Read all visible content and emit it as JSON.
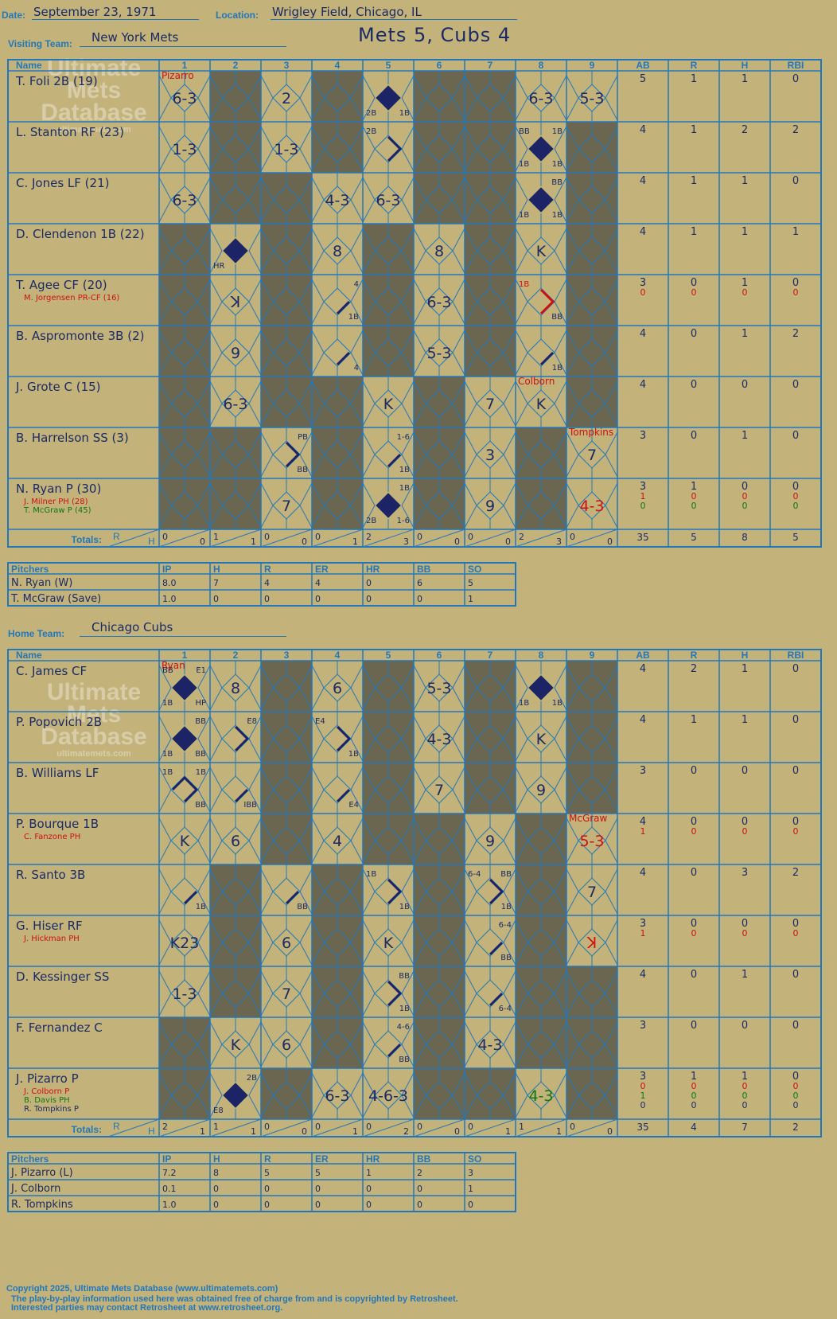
{
  "header": {
    "date_label": "Date:",
    "date": "September 23, 1971",
    "location_label": "Location:",
    "location": "Wrigley Field, Chicago, IL",
    "visiting_label": "Visiting Team:",
    "visiting_team": "New York Mets",
    "home_label": "Home Team:",
    "home_team": "Chicago Cubs",
    "score_title": "Mets 5, Cubs 4"
  },
  "grid_headers": {
    "name": "Name",
    "innings": [
      "1",
      "2",
      "3",
      "4",
      "5",
      "6",
      "7",
      "8",
      "9"
    ],
    "stats": [
      "AB",
      "R",
      "H",
      "RBI"
    ],
    "totals": "Totals:",
    "r": "R",
    "h": "H"
  },
  "pitch_headers": [
    "Pitchers",
    "IP",
    "H",
    "R",
    "ER",
    "HR",
    "BB",
    "SO"
  ],
  "watermark": {
    "line1": "Ultimate",
    "line2": "Mets",
    "line3": "Database",
    "url": "ultimatemets.com"
  },
  "visitors": {
    "batters": [
      {
        "name": "T. Foli 2B (19)",
        "subs": [],
        "stats": [
          [
            "5",
            "1",
            "1",
            "0"
          ]
        ],
        "cells": [
          {
            "text": "6-3",
            "note": "Pizarro",
            "note_color": "red"
          },
          {
            "shade": true
          },
          {
            "text": "2"
          },
          {
            "shade": true
          },
          {
            "run": true,
            "bl": "2B",
            "br": "1B"
          },
          {
            "shade": true
          },
          {
            "shade": true
          },
          {
            "text": "6-3"
          },
          {
            "text": "5-3"
          }
        ]
      },
      {
        "name": "L. Stanton RF (23)",
        "subs": [],
        "stats": [
          [
            "4",
            "1",
            "2",
            "2"
          ]
        ],
        "cells": [
          {
            "text": "1-3"
          },
          {
            "shade": true
          },
          {
            "text": "1-3"
          },
          {
            "shade": true
          },
          {
            "tl": "2B",
            "path": "hit2"
          },
          {
            "shade": true
          },
          {
            "shade": true
          },
          {
            "run": true,
            "tl": "BB",
            "tr": "1B",
            "bl": "1B",
            "br": "1B"
          },
          {
            "shade": true
          }
        ]
      },
      {
        "name": "C. Jones LF (21)",
        "subs": [],
        "stats": [
          [
            "4",
            "1",
            "1",
            "0"
          ]
        ],
        "cells": [
          {
            "text": "6-3"
          },
          {
            "shade": true
          },
          {
            "shade": true
          },
          {
            "text": "4-3"
          },
          {
            "text": "6-3"
          },
          {
            "shade": true
          },
          {
            "shade": true
          },
          {
            "run": true,
            "tr": "BB",
            "bl": "1B",
            "br": "1B"
          },
          {
            "shade": true
          }
        ]
      },
      {
        "name": "D. Clendenon 1B (22)",
        "subs": [],
        "stats": [
          [
            "4",
            "1",
            "1",
            "1"
          ]
        ],
        "cells": [
          {
            "shade": true
          },
          {
            "run": true,
            "bl": "HR"
          },
          {
            "shade": true
          },
          {
            "text": "8"
          },
          {
            "shade": true
          },
          {
            "text": "8"
          },
          {
            "shade": true
          },
          {
            "text": "K"
          },
          {
            "shade": true
          }
        ]
      },
      {
        "name": "T. Agee CF (20)",
        "subs": [
          {
            "name": "M. Jorgensen PR-CF (16)",
            "color": "red"
          }
        ],
        "stats": [
          [
            "3",
            "0",
            "1",
            "0"
          ],
          [
            "0",
            "0",
            "0",
            "0"
          ]
        ],
        "cells": [
          {
            "shade": true
          },
          {
            "text": "ꓘ"
          },
          {
            "shade": true
          },
          {
            "tr": "4",
            "br": "1B",
            "path": "hit1"
          },
          {
            "shade": true
          },
          {
            "text": "6-3"
          },
          {
            "shade": true
          },
          {
            "tl": "1B",
            "br": "BB",
            "path": "hit2",
            "pcolor": "red",
            "tlred": true
          },
          {
            "shade": true
          }
        ]
      },
      {
        "name": "B. Aspromonte 3B (2)",
        "subs": [],
        "stats": [
          [
            "4",
            "0",
            "1",
            "2"
          ]
        ],
        "cells": [
          {
            "shade": true
          },
          {
            "text": "9"
          },
          {
            "shade": true
          },
          {
            "br": "4",
            "path": "hit1"
          },
          {
            "shade": true
          },
          {
            "text": "5-3"
          },
          {
            "shade": true
          },
          {
            "br": "1B",
            "path": "hit1"
          },
          {
            "shade": true
          }
        ]
      },
      {
        "name": "J. Grote C (15)",
        "subs": [],
        "stats": [
          [
            "4",
            "0",
            "0",
            "0"
          ]
        ],
        "cells": [
          {
            "shade": true
          },
          {
            "text": "6-3"
          },
          {
            "shade": true
          },
          {
            "shade": true
          },
          {
            "text": "K"
          },
          {
            "shade": true
          },
          {
            "text": "7"
          },
          {
            "text": "K",
            "note": "Colborn",
            "note_color": "red"
          },
          {
            "shade": true
          }
        ]
      },
      {
        "name": "B. Harrelson SS (3)",
        "subs": [],
        "stats": [
          [
            "3",
            "0",
            "1",
            "0"
          ]
        ],
        "cells": [
          {
            "shade": true
          },
          {
            "shade": true
          },
          {
            "tr": "PB",
            "br": "BB",
            "path": "hit2"
          },
          {
            "shade": true
          },
          {
            "tr": "1-6",
            "br": "1B",
            "path": "hit1"
          },
          {
            "shade": true
          },
          {
            "text": "3"
          },
          {
            "shade": true
          },
          {
            "text": "7",
            "note": "Tompkins",
            "note_color": "red"
          }
        ]
      },
      {
        "name": "N. Ryan P (30)",
        "subs": [
          {
            "name": "J. Milner PH (28)",
            "color": "red"
          },
          {
            "name": "T. McGraw P (45)",
            "color": "grn"
          }
        ],
        "stats": [
          [
            "3",
            "1",
            "0",
            "0"
          ],
          [
            "1",
            "0",
            "0",
            "0"
          ],
          [
            "0",
            "0",
            "0",
            "0"
          ]
        ],
        "cells": [
          {
            "shade": true
          },
          {
            "shade": true
          },
          {
            "text": "7"
          },
          {
            "shade": true
          },
          {
            "run": true,
            "tr": "1B",
            "bl": "2B",
            "br": "1-6"
          },
          {
            "shade": true
          },
          {
            "text": "9"
          },
          {
            "shade": true
          },
          {
            "text": "4-3",
            "color": "red"
          }
        ]
      }
    ],
    "totals": [
      [
        "0",
        "0"
      ],
      [
        "1",
        "1"
      ],
      [
        "0",
        "0"
      ],
      [
        "0",
        "1"
      ],
      [
        "2",
        "3"
      ],
      [
        "0",
        "0"
      ],
      [
        "0",
        "0"
      ],
      [
        "2",
        "3"
      ],
      [
        "0",
        "0"
      ]
    ],
    "totals_stats": [
      "35",
      "5",
      "8",
      "5"
    ],
    "pitchers": [
      [
        "N. Ryan (W)",
        "8.0",
        "7",
        "4",
        "4",
        "0",
        "6",
        "5"
      ],
      [
        "T. McGraw (Save)",
        "1.0",
        "0",
        "0",
        "0",
        "0",
        "0",
        "1"
      ]
    ]
  },
  "home": {
    "batters": [
      {
        "name": "C. James CF",
        "subs": [],
        "stats": [
          [
            "4",
            "2",
            "1",
            "0"
          ]
        ],
        "cells": [
          {
            "run": true,
            "tl": "BB",
            "tr": "E1",
            "bl": "1B",
            "br": "HP",
            "note": "Ryan",
            "note_color": "red"
          },
          {
            "text": "8"
          },
          {
            "shade": true
          },
          {
            "text": "6"
          },
          {
            "shade": true
          },
          {
            "text": "5-3"
          },
          {
            "shade": true
          },
          {
            "run": true,
            "bl": "1B",
            "br": "1B"
          },
          {
            "shade": true
          }
        ]
      },
      {
        "name": "P. Popovich 2B",
        "subs": [],
        "stats": [
          [
            "4",
            "1",
            "1",
            "0"
          ]
        ],
        "cells": [
          {
            "run": true,
            "tr": "BB",
            "bl": "1B",
            "br": "BB"
          },
          {
            "tr": "E8",
            "path": "hit2"
          },
          {
            "shade": true
          },
          {
            "tl": "E4",
            "br": "1B",
            "path": "hit2"
          },
          {
            "shade": true
          },
          {
            "text": "4-3"
          },
          {
            "shade": true
          },
          {
            "text": "K"
          },
          {
            "shade": true
          }
        ]
      },
      {
        "name": "B. Williams LF",
        "subs": [],
        "stats": [
          [
            "3",
            "0",
            "0",
            "0"
          ]
        ],
        "cells": [
          {
            "tl": "1B",
            "tr": "1B",
            "br": "BB",
            "path": "hit3"
          },
          {
            "br": "IBB",
            "path": "hit1"
          },
          {
            "shade": true
          },
          {
            "br": "E4",
            "path": "hit1"
          },
          {
            "shade": true
          },
          {
            "text": "7"
          },
          {
            "shade": true
          },
          {
            "text": "9"
          },
          {
            "shade": true
          }
        ]
      },
      {
        "name": "P. Bourque 1B",
        "subs": [
          {
            "name": "C. Fanzone PH",
            "color": "red"
          }
        ],
        "stats": [
          [
            "4",
            "0",
            "0",
            "0"
          ],
          [
            "1",
            "0",
            "0",
            "0"
          ]
        ],
        "cells": [
          {
            "text": "K"
          },
          {
            "text": "6"
          },
          {
            "shade": true
          },
          {
            "text": "4"
          },
          {
            "shade": true
          },
          {
            "shade": true
          },
          {
            "text": "9"
          },
          {
            "shade": true
          },
          {
            "text": "5-3",
            "color": "red",
            "note": "McGraw",
            "note_color": "red"
          }
        ]
      },
      {
        "name": "R. Santo 3B",
        "subs": [],
        "stats": [
          [
            "4",
            "0",
            "3",
            "2"
          ]
        ],
        "cells": [
          {
            "br": "1B",
            "path": "hit1"
          },
          {
            "shade": true
          },
          {
            "br": "BB",
            "path": "hit1"
          },
          {
            "shade": true
          },
          {
            "tl": "1B",
            "br": "1B",
            "path": "hit2"
          },
          {
            "shade": true
          },
          {
            "tl": "6-4",
            "tr": "BB",
            "br": "1B",
            "path": "hit2"
          },
          {
            "shade": true
          },
          {
            "text": "7"
          }
        ]
      },
      {
        "name": "G. Hiser RF",
        "subs": [
          {
            "name": "J. Hickman PH",
            "color": "red"
          }
        ],
        "stats": [
          [
            "3",
            "0",
            "0",
            "0"
          ],
          [
            "1",
            "0",
            "0",
            "0"
          ]
        ],
        "cells": [
          {
            "text": "K23"
          },
          {
            "shade": true
          },
          {
            "text": "6"
          },
          {
            "shade": true
          },
          {
            "text": "K"
          },
          {
            "shade": true
          },
          {
            "tr": "6-4",
            "br": "BB",
            "path": "hit1"
          },
          {
            "shade": true
          },
          {
            "text": "ꓘ",
            "color": "red"
          }
        ]
      },
      {
        "name": "D. Kessinger SS",
        "subs": [],
        "stats": [
          [
            "4",
            "0",
            "1",
            "0"
          ]
        ],
        "cells": [
          {
            "text": "1-3"
          },
          {
            "shade": true
          },
          {
            "text": "7"
          },
          {
            "shade": true
          },
          {
            "tr": "BB",
            "br": "1B",
            "path": "hit2"
          },
          {
            "shade": true
          },
          {
            "br": "6-4",
            "path": "hit1"
          },
          {
            "shade": true
          },
          {
            "shade": true
          }
        ]
      },
      {
        "name": "F. Fernandez C",
        "subs": [],
        "stats": [
          [
            "3",
            "0",
            "0",
            "0"
          ]
        ],
        "cells": [
          {
            "shade": true
          },
          {
            "text": "K"
          },
          {
            "text": "6"
          },
          {
            "shade": true
          },
          {
            "tr": "4-6",
            "br": "BB",
            "path": "hit1"
          },
          {
            "shade": true
          },
          {
            "text": "4-3"
          },
          {
            "shade": true
          },
          {
            "shade": true
          }
        ]
      },
      {
        "name": "J. Pizarro P",
        "subs": [
          {
            "name": "J. Colborn P",
            "color": "red"
          },
          {
            "name": "B. Davis PH",
            "color": "grn"
          },
          {
            "name": "R. Tompkins P",
            "color": "dark"
          }
        ],
        "stats": [
          [
            "3",
            "1",
            "1",
            "0"
          ],
          [
            "0",
            "0",
            "0",
            "0"
          ],
          [
            "1",
            "0",
            "0",
            "0"
          ],
          [
            "0",
            "0",
            "0",
            "0"
          ]
        ],
        "cells": [
          {
            "shade": true
          },
          {
            "run": true,
            "tr": "2B",
            "bl": "E8"
          },
          {
            "shade": true
          },
          {
            "text": "6-3"
          },
          {
            "text": "4-6-3"
          },
          {
            "shade": true
          },
          {
            "shade": true
          },
          {
            "text": "4-3",
            "color": "grn"
          },
          {
            "shade": true
          }
        ]
      }
    ],
    "totals": [
      [
        "2",
        "1"
      ],
      [
        "1",
        "1"
      ],
      [
        "0",
        "0"
      ],
      [
        "0",
        "1"
      ],
      [
        "0",
        "2"
      ],
      [
        "0",
        "0"
      ],
      [
        "0",
        "1"
      ],
      [
        "1",
        "1"
      ],
      [
        "0",
        "0"
      ]
    ],
    "totals_stats": [
      "35",
      "4",
      "7",
      "2"
    ],
    "pitchers": [
      [
        "J. Pizarro (L)",
        "7.2",
        "8",
        "5",
        "5",
        "1",
        "2",
        "3"
      ],
      [
        "J. Colborn",
        "0.1",
        "0",
        "0",
        "0",
        "0",
        "0",
        "1"
      ],
      [
        "R. Tompkins",
        "1.0",
        "0",
        "0",
        "0",
        "0",
        "0",
        "0"
      ]
    ]
  },
  "footer": {
    "line1": "Copyright 2025, Ultimate Mets Database (www.ultimatemets.com)",
    "line2": "The play-by-play information used here was obtained free of charge from and is copyrighted by Retrosheet.",
    "line3": "Interested parties may contact Retrosheet at www.retrosheet.org."
  },
  "colors": {
    "background": "#c3b37a",
    "grid": "#2277bb",
    "shade": "#6b6650",
    "ink": "#1a2a66",
    "red": "#cc1111",
    "green": "#117711"
  }
}
